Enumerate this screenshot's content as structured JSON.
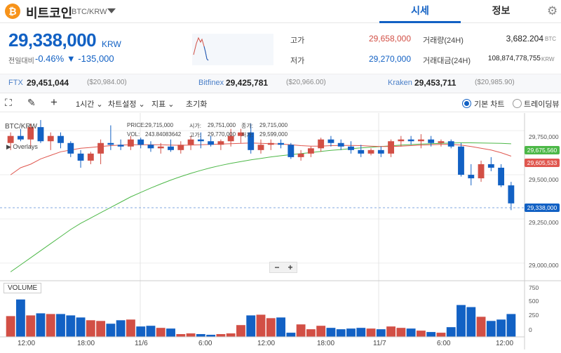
{
  "header": {
    "coin_logo_glyph": "₿",
    "coin_name": "비트코인",
    "coin_pair": "BTC/KRW",
    "tabs": [
      {
        "label": "시세"
      },
      {
        "label": "정보"
      }
    ],
    "settings_icon": "gear-icon"
  },
  "ticker": {
    "price": "29,338,000",
    "unit": "KRW",
    "prev_label": "전일대비",
    "change_rate": "-0.46%",
    "change_amount": "▼ -135,000"
  },
  "stats": {
    "high_label": "고가",
    "high_value": "29,658,000",
    "low_label": "저가",
    "low_value": "29,270,000",
    "volume_label": "거래량(24H)",
    "volume_value": "3,682.204",
    "volume_unit": "BTC",
    "turnover_label": "거래대금(24H)",
    "turnover_value": "108,874,778,755",
    "turnover_unit": "KRW"
  },
  "exchanges": [
    {
      "name": "FTX",
      "price": "29,451,044",
      "usd": "($20,984.00)"
    },
    {
      "name": "Bitfinex",
      "price": "29,425,781",
      "usd": "($20,966.00)"
    },
    {
      "name": "Kraken",
      "price": "29,453,711",
      "usd": "($20,985.90)"
    }
  ],
  "toolbar": {
    "interval": "1시간",
    "chart_settings": "차트설정",
    "indicators": "지표",
    "reset": "초기화",
    "basic_chart": "기본 차트",
    "trading_view": "트레이딩뷰"
  },
  "chart_overlay": {
    "symbol": "BTC/KRW",
    "overlays": "Overlays",
    "price_label": "PRICE:",
    "price_value": "29,715,000",
    "vol_label": "VOL:",
    "vol_value": "243.84083642",
    "open_label": "시가:",
    "open_value": "29,751,000",
    "high_label": "고가:",
    "high_value": "29,770,000",
    "close_label": "종가:",
    "close_value": "29,715,000",
    "low_label": "저가:",
    "low_value": "29,599,000"
  },
  "volume_panel": {
    "label": "VOLUME",
    "axis": [
      "750",
      "500",
      "250",
      "0"
    ]
  },
  "price_tags": {
    "ma_long": "29,675,560",
    "ma_short": "29,605,533",
    "current": "29,338,000"
  },
  "colors": {
    "up": "#d24f45",
    "down": "#1261c4",
    "ma_long": "#4db848",
    "ma_short": "#e0574f"
  },
  "chart_data": {
    "type": "candlestick",
    "y_axis_ticks": [
      29750000,
      29500000,
      29250000,
      29000000
    ],
    "y_axis_labels": [
      "29,750,000",
      "29,500,000",
      "29,250,000",
      "29,000,000"
    ],
    "ylim": [
      28900000,
      29850000
    ],
    "x_tick_labels": [
      "12:00",
      "18:00",
      "11/6",
      "6:00",
      "12:00",
      "18:00",
      "11/7",
      "6:00",
      "12:00"
    ],
    "candles": [
      [
        29680000,
        29740000,
        29640000,
        29720000
      ],
      [
        29720000,
        29760000,
        29690000,
        29700000
      ],
      [
        29700000,
        29790000,
        29650000,
        29770000
      ],
      [
        29770000,
        29810000,
        29680000,
        29690000
      ],
      [
        29690000,
        29740000,
        29640000,
        29720000
      ],
      [
        29720000,
        29740000,
        29650000,
        29680000
      ],
      [
        29680000,
        29690000,
        29600000,
        29620000
      ],
      [
        29620000,
        29640000,
        29540000,
        29580000
      ],
      [
        29580000,
        29630000,
        29560000,
        29620000
      ],
      [
        29620000,
        29700000,
        29560000,
        29680000
      ],
      [
        29680000,
        29780000,
        29640000,
        29670000
      ],
      [
        29670000,
        29700000,
        29640000,
        29660000
      ],
      [
        29660000,
        29720000,
        29640000,
        29700000
      ],
      [
        29700000,
        29710000,
        29650000,
        29670000
      ],
      [
        29670000,
        29690000,
        29630000,
        29650000
      ],
      [
        29650000,
        29680000,
        29620000,
        29660000
      ],
      [
        29660000,
        29700000,
        29630000,
        29640000
      ],
      [
        29640000,
        29690000,
        29620000,
        29670000
      ],
      [
        29670000,
        29720000,
        29640000,
        29700000
      ],
      [
        29700000,
        29740000,
        29650000,
        29690000
      ],
      [
        29690000,
        29720000,
        29660000,
        29670000
      ],
      [
        29670000,
        29700000,
        29640000,
        29690000
      ],
      [
        29690000,
        29760000,
        29660000,
        29720000
      ],
      [
        29720000,
        29760000,
        29680000,
        29740000
      ],
      [
        29740000,
        29790000,
        29620000,
        29640000
      ],
      [
        29640000,
        29700000,
        29620000,
        29670000
      ],
      [
        29670000,
        29700000,
        29640000,
        29680000
      ],
      [
        29680000,
        29700000,
        29650000,
        29670000
      ],
      [
        29670000,
        29680000,
        29590000,
        29600000
      ],
      [
        29600000,
        29640000,
        29580000,
        29620000
      ],
      [
        29620000,
        29660000,
        29600000,
        29650000
      ],
      [
        29650000,
        29710000,
        29630000,
        29700000
      ],
      [
        29700000,
        29720000,
        29660000,
        29680000
      ],
      [
        29680000,
        29700000,
        29640000,
        29660000
      ],
      [
        29660000,
        29690000,
        29620000,
        29640000
      ],
      [
        29640000,
        29670000,
        29600000,
        29620000
      ],
      [
        29620000,
        29650000,
        29610000,
        29640000
      ],
      [
        29640000,
        29660000,
        29600000,
        29620000
      ],
      [
        29620000,
        29700000,
        29600000,
        29690000
      ],
      [
        29690000,
        29720000,
        29660000,
        29700000
      ],
      [
        29700000,
        29720000,
        29670000,
        29690000
      ],
      [
        29690000,
        29730000,
        29650000,
        29700000
      ],
      [
        29700000,
        29720000,
        29660000,
        29680000
      ],
      [
        29680000,
        29700000,
        29660000,
        29690000
      ],
      [
        29690000,
        29700000,
        29650000,
        29660000
      ],
      [
        29660000,
        29680000,
        29490000,
        29500000
      ],
      [
        29500000,
        29560000,
        29440000,
        29480000
      ],
      [
        29480000,
        29580000,
        29460000,
        29560000
      ],
      [
        29560000,
        29600000,
        29520000,
        29540000
      ],
      [
        29540000,
        29560000,
        29430000,
        29440000
      ],
      [
        29440000,
        29460000,
        29300000,
        29338000
      ]
    ],
    "volumes": [
      300,
      540,
      310,
      340,
      330,
      330,
      310,
      280,
      240,
      230,
      190,
      240,
      250,
      150,
      160,
      130,
      120,
      40,
      50,
      40,
      30,
      40,
      50,
      170,
      310,
      320,
      270,
      280,
      60,
      180,
      110,
      160,
      130,
      110,
      120,
      130,
      120,
      110,
      150,
      130,
      120,
      90,
      70,
      60,
      140,
      460,
      430,
      290,
      230,
      250,
      330
    ],
    "ma_short": [
      29500000,
      29540000,
      29560000,
      29590000,
      29610000,
      29630000,
      29640000,
      29650000,
      29655000,
      29660000,
      29665000,
      29668000,
      29670000,
      29670000,
      29670000,
      29670000,
      29668000,
      29667000,
      29668000,
      29670000,
      29672000,
      29674000,
      29676000,
      29678000,
      29680000,
      29678000,
      29676000,
      29674000,
      29670000,
      29665000,
      29662000,
      29662000,
      29665000,
      29666000,
      29666000,
      29665000,
      29662000,
      29660000,
      29660000,
      29662000,
      29665000,
      29668000,
      29670000,
      29672000,
      29672000,
      29668000,
      29660000,
      29650000,
      29640000,
      29625000,
      29605533
    ],
    "ma_long": [
      28950000,
      28990000,
      29030000,
      29070000,
      29110000,
      29150000,
      29190000,
      29225000,
      29255000,
      29285000,
      29315000,
      29345000,
      29375000,
      29400000,
      29425000,
      29448000,
      29470000,
      29490000,
      29508000,
      29525000,
      29540000,
      29553000,
      29565000,
      29575000,
      29585000,
      29593000,
      29601000,
      29608000,
      29614000,
      29620000,
      29626000,
      29632000,
      29638000,
      29643000,
      29648000,
      29652000,
      29656000,
      29660000,
      29664000,
      29668000,
      29671000,
      29674000,
      29676000,
      29678000,
      29680000,
      29681000,
      29681000,
      29680000,
      29679000,
      29678000,
      29675560
    ],
    "volume_ylim": [
      0,
      750
    ]
  }
}
